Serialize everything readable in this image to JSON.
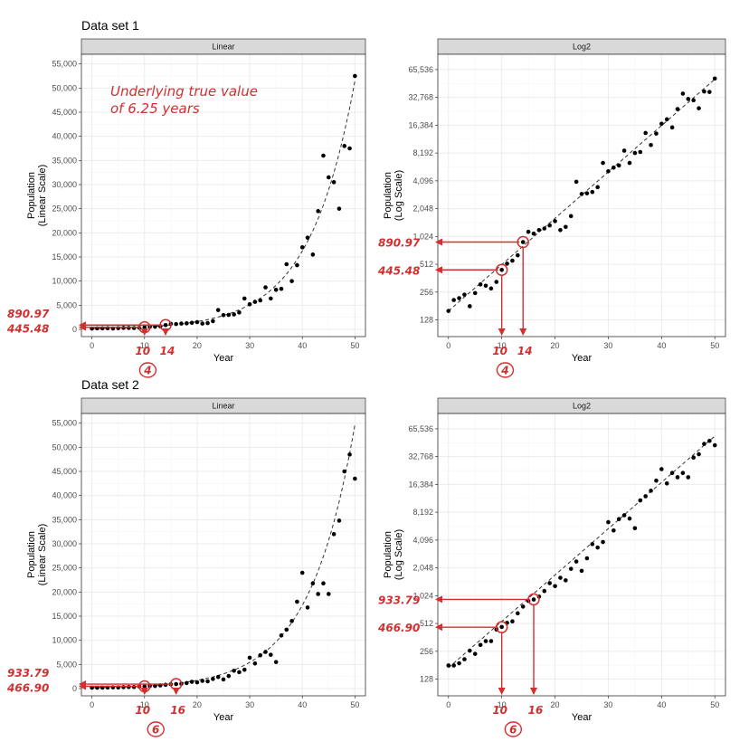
{
  "chart_data": [
    {
      "type": "scatter",
      "group_title": "Data set 1",
      "panel": "Linear",
      "scale": "linear",
      "xlabel": "Year",
      "ylabel": "Population\n(Linear Scale)",
      "xlim": [
        -2,
        52
      ],
      "ylim": [
        -1500,
        57000
      ],
      "xticks": [
        0,
        10,
        20,
        30,
        40,
        50
      ],
      "yticks": [
        0,
        5000,
        10000,
        15000,
        20000,
        25000,
        30000,
        35000,
        40000,
        45000,
        50000,
        55000
      ],
      "ytick_labels": [
        "0",
        "5,000",
        "10,000",
        "15,000",
        "20,000",
        "25,000",
        "30,000",
        "35,000",
        "40,000",
        "45,000",
        "50,000",
        "55,000"
      ],
      "grid": true,
      "curve": {
        "a": 160,
        "rate": 0.1155
      },
      "x": [
        0,
        1,
        2,
        3,
        4,
        5,
        6,
        7,
        8,
        9,
        10,
        11,
        12,
        13,
        14,
        15,
        16,
        17,
        18,
        19,
        20,
        21,
        22,
        23,
        24,
        25,
        26,
        27,
        28,
        29,
        30,
        31,
        32,
        33,
        34,
        35,
        36,
        37,
        38,
        39,
        40,
        41,
        42,
        43,
        44,
        45,
        46,
        47,
        48,
        49,
        50
      ],
      "y": [
        160,
        210,
        220,
        240,
        180,
        250,
        310,
        300,
        280,
        330,
        445,
        520,
        560,
        640,
        890,
        1150,
        1100,
        1200,
        1250,
        1350,
        1500,
        1200,
        1300,
        1700,
        4000,
        2950,
        3000,
        3100,
        3500,
        6400,
        5200,
        5700,
        6000,
        8700,
        6400,
        8200,
        8400,
        13500,
        10000,
        13300,
        17000,
        19000,
        15500,
        24500,
        36000,
        31500,
        30500,
        25000,
        38000,
        37500,
        52500
      ],
      "markers": [
        {
          "x": 10,
          "y": 445.48,
          "y_label": "445.48",
          "x_label": "10"
        },
        {
          "x": 14,
          "y": 890.97,
          "y_label": "890.97",
          "x_label": "14"
        }
      ],
      "gap_label": "4",
      "note": "Underlying true value\nof 6.25 years"
    },
    {
      "type": "scatter",
      "group_title": "Data set 1",
      "panel": "Log2",
      "scale": "log2",
      "xlabel": "Year",
      "ylabel": "Population\n(Log Scale)",
      "xlim": [
        -2,
        52
      ],
      "ylim_log2": [
        6.4,
        16.55
      ],
      "xticks": [
        0,
        10,
        20,
        30,
        40,
        50
      ],
      "yticks": [
        128,
        256,
        512,
        1024,
        2048,
        4096,
        8192,
        16384,
        32768,
        65536
      ],
      "ytick_labels": [
        "128",
        "256",
        "512",
        "1,024",
        "2,048",
        "4,096",
        "8,192",
        "16,384",
        "32,768",
        "65,536"
      ],
      "grid": true,
      "curve": {
        "a": 160,
        "rate": 0.1155
      },
      "x": [
        0,
        1,
        2,
        3,
        4,
        5,
        6,
        7,
        8,
        9,
        10,
        11,
        12,
        13,
        14,
        15,
        16,
        17,
        18,
        19,
        20,
        21,
        22,
        23,
        24,
        25,
        26,
        27,
        28,
        29,
        30,
        31,
        32,
        33,
        34,
        35,
        36,
        37,
        38,
        39,
        40,
        41,
        42,
        43,
        44,
        45,
        46,
        47,
        48,
        49,
        50
      ],
      "y": [
        160,
        210,
        220,
        240,
        180,
        250,
        310,
        300,
        280,
        330,
        445,
        520,
        560,
        640,
        890,
        1150,
        1100,
        1200,
        1250,
        1350,
        1500,
        1200,
        1300,
        1700,
        4000,
        2950,
        3000,
        3100,
        3500,
        6400,
        5200,
        5700,
        6000,
        8700,
        6400,
        8200,
        8400,
        13500,
        10000,
        13300,
        17000,
        19000,
        15500,
        24500,
        36000,
        31500,
        30500,
        25000,
        38000,
        37500,
        52500
      ],
      "markers": [
        {
          "x": 10,
          "y": 445.48,
          "y_label": "445.48",
          "x_label": "10"
        },
        {
          "x": 14,
          "y": 890.97,
          "y_label": "890.97",
          "x_label": "14"
        }
      ],
      "gap_label": "4"
    },
    {
      "type": "scatter",
      "group_title": "Data set 2",
      "panel": "Linear",
      "scale": "linear",
      "xlabel": "Year",
      "ylabel": "Population\n(Linear Scale)",
      "xlim": [
        -2,
        52
      ],
      "ylim": [
        -1500,
        57000
      ],
      "xticks": [
        0,
        10,
        20,
        30,
        40,
        50
      ],
      "yticks": [
        0,
        5000,
        10000,
        15000,
        20000,
        25000,
        30000,
        35000,
        40000,
        45000,
        50000,
        55000
      ],
      "ytick_labels": [
        "0",
        "5,000",
        "10,000",
        "15,000",
        "20,000",
        "25,000",
        "30,000",
        "35,000",
        "40,000",
        "45,000",
        "50,000",
        "55,000"
      ],
      "grid": true,
      "curve": {
        "a": 170,
        "rate": 0.1155
      },
      "x": [
        0,
        1,
        2,
        3,
        4,
        5,
        6,
        7,
        8,
        9,
        10,
        11,
        12,
        13,
        14,
        15,
        16,
        17,
        18,
        19,
        20,
        21,
        22,
        23,
        24,
        25,
        26,
        27,
        28,
        29,
        30,
        31,
        32,
        33,
        34,
        35,
        36,
        37,
        38,
        39,
        40,
        41,
        42,
        43,
        44,
        45,
        46,
        47,
        48,
        49,
        50
      ],
      "y": [
        180,
        180,
        190,
        210,
        260,
        240,
        300,
        330,
        330,
        440,
        470,
        520,
        540,
        660,
        780,
        900,
        930,
        1000,
        1150,
        1400,
        1300,
        1600,
        1500,
        2000,
        2400,
        1900,
        2600,
        3700,
        3400,
        3900,
        6400,
        5200,
        6900,
        7600,
        7000,
        5500,
        11000,
        12200,
        14000,
        18000,
        24000,
        16800,
        21800,
        19600,
        21800,
        19600,
        32000,
        34800,
        45000,
        48500,
        43500
      ],
      "markers": [
        {
          "x": 10,
          "y": 466.9,
          "y_label": "466.90",
          "x_label": "10"
        },
        {
          "x": 16,
          "y": 933.79,
          "y_label": "933.79",
          "x_label": "16"
        }
      ],
      "gap_label": "6"
    },
    {
      "type": "scatter",
      "group_title": "Data set 2",
      "panel": "Log2",
      "scale": "log2",
      "xlabel": "Year",
      "ylabel": "Population\n(Log Scale)",
      "xlim": [
        -2,
        52
      ],
      "ylim_log2": [
        6.4,
        16.55
      ],
      "xticks": [
        0,
        10,
        20,
        30,
        40,
        50
      ],
      "yticks": [
        128,
        256,
        512,
        1024,
        2048,
        4096,
        8192,
        16384,
        32768,
        65536
      ],
      "ytick_labels": [
        "128",
        "256",
        "512",
        "1,024",
        "2,048",
        "4,096",
        "8,192",
        "16,384",
        "32,768",
        "65,536"
      ],
      "grid": true,
      "curve": {
        "a": 170,
        "rate": 0.1155
      },
      "x": [
        0,
        1,
        2,
        3,
        4,
        5,
        6,
        7,
        8,
        9,
        10,
        11,
        12,
        13,
        14,
        15,
        16,
        17,
        18,
        19,
        20,
        21,
        22,
        23,
        24,
        25,
        26,
        27,
        28,
        29,
        30,
        31,
        32,
        33,
        34,
        35,
        36,
        37,
        38,
        39,
        40,
        41,
        42,
        43,
        44,
        45,
        46,
        47,
        48,
        49,
        50
      ],
      "y": [
        180,
        180,
        190,
        210,
        260,
        240,
        300,
        330,
        330,
        440,
        470,
        520,
        540,
        660,
        780,
        900,
        930,
        1000,
        1150,
        1400,
        1300,
        1600,
        1500,
        2000,
        2400,
        1900,
        2600,
        3700,
        3400,
        3900,
        6400,
        5200,
        6900,
        7600,
        7000,
        5500,
        11000,
        12200,
        14000,
        18000,
        24000,
        16800,
        21800,
        19600,
        21800,
        19600,
        32000,
        34800,
        45000,
        48500,
        43500
      ],
      "markers": [
        {
          "x": 10,
          "y": 466.9,
          "y_label": "466.90",
          "x_label": "10"
        },
        {
          "x": 16,
          "y": 933.79,
          "y_label": "933.79",
          "x_label": "16"
        }
      ],
      "gap_label": "6"
    }
  ],
  "colors": {
    "annotation": "#d32f2f",
    "point": "#000000",
    "strip_bg": "#d9d9d9",
    "grid": "#ebebeb",
    "grid_minor": "#f5f5f5"
  }
}
